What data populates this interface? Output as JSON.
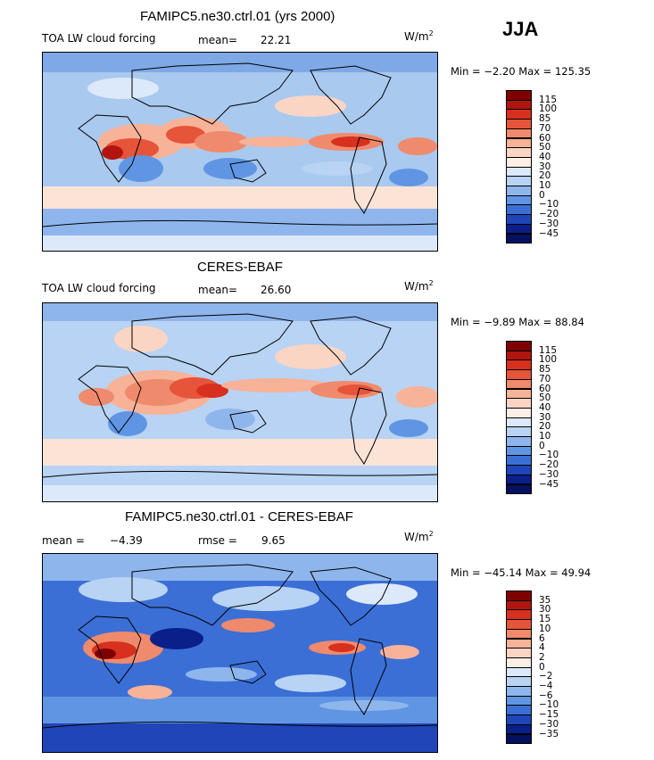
{
  "season": "JJA",
  "units_prefix": "W/m",
  "units_exp": "2",
  "panels": [
    {
      "id": "model",
      "title": "FAMIPC5.ne30.ctrl.01 (yrs 2000)",
      "left_label": "TOA LW cloud forcing",
      "stat_label": "mean=",
      "stat_value": "22.21",
      "minmax": "Min =   −2.20  Max = 125.35",
      "colorbar_labels": [
        "115",
        "100",
        "85",
        "70",
        "60",
        "50",
        "40",
        "30",
        "20",
        "10",
        "0",
        "−10",
        "−20",
        "−30",
        "−45"
      ]
    },
    {
      "id": "obs",
      "title": "CERES-EBAF",
      "left_label": "TOA LW cloud forcing",
      "stat_label": "mean=",
      "stat_value": "26.60",
      "minmax": "Min =  −9.89  Max =  88.84",
      "colorbar_labels": [
        "115",
        "100",
        "85",
        "70",
        "60",
        "50",
        "40",
        "30",
        "20",
        "10",
        "0",
        "−10",
        "−20",
        "−30",
        "−45"
      ]
    },
    {
      "id": "diff",
      "title": "FAMIPC5.ne30.ctrl.01 - CERES-EBAF",
      "left_label": "mean =",
      "left_value": "−4.39",
      "stat_label": "rmse =",
      "stat_value": "9.65",
      "minmax": "Min = −45.14  Max =  49.94",
      "colorbar_labels": [
        "35",
        "30",
        "15",
        "10",
        "6",
        "4",
        "2",
        "0",
        "−2",
        "−4",
        "−6",
        "−10",
        "−15",
        "−30",
        "−35"
      ]
    }
  ],
  "colors": {
    "abs_scale": [
      "#7f0000",
      "#b2150f",
      "#d7301f",
      "#e6543a",
      "#f08a6c",
      "#f7b298",
      "#fbd5c3",
      "#fdeee6",
      "#dce9fa",
      "#b8d3f3",
      "#8fb6ec",
      "#6095e3",
      "#3b6fd6",
      "#1f45b8",
      "#0a1f8a",
      "#03115e"
    ],
    "diff_scale": [
      "#7f0000",
      "#b2150f",
      "#d7301f",
      "#e6543a",
      "#f08a6c",
      "#f7b298",
      "#fbd5c3",
      "#fdeee6",
      "#dce9fa",
      "#b8d3f3",
      "#8fb6ec",
      "#6095e3",
      "#3b6fd6",
      "#1f45b8",
      "#0a1f8a",
      "#03115e"
    ]
  }
}
